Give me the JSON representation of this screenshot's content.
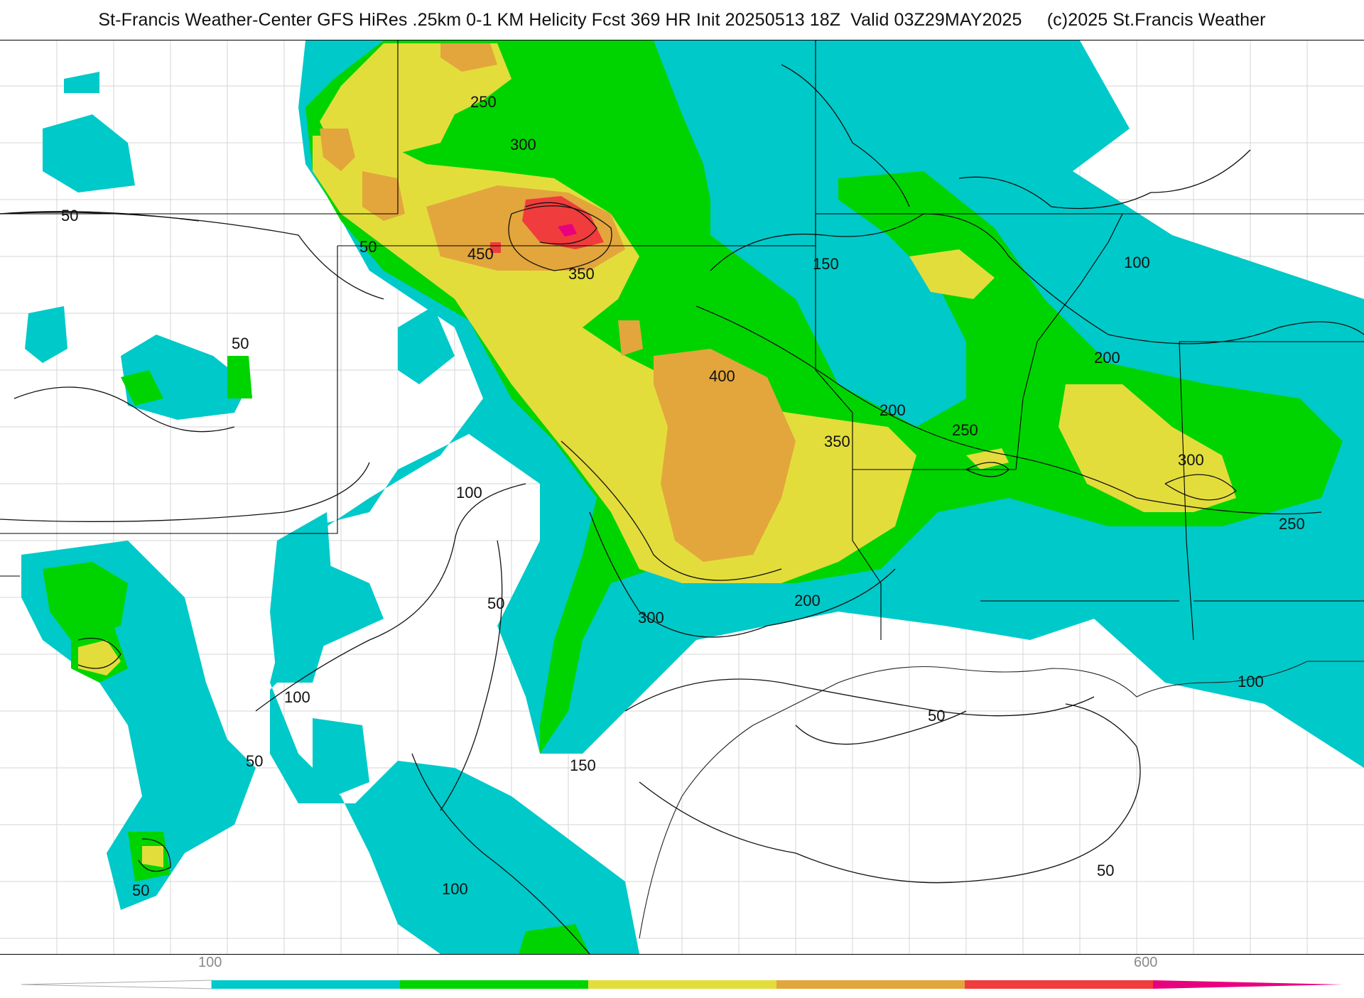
{
  "header": {
    "title": "St-Francis Weather-Center GFS HiRes .25km 0-1 KM Helicity Fcst 369 HR Init 20250513 18Z  Valid 03Z29MAY2025     (c)2025 St.Francis Weather"
  },
  "map": {
    "contour_labels": [
      "250",
      "300",
      "450",
      "350",
      "150",
      "100",
      "50",
      "50",
      "50",
      "400",
      "200",
      "250",
      "350",
      "200",
      "300",
      "250",
      "100",
      "50",
      "300",
      "200",
      "100",
      "50",
      "150",
      "50",
      "100",
      "50",
      "100",
      "50"
    ]
  },
  "colorbar": {
    "tick_labels": [
      "100",
      "600"
    ],
    "colors": [
      "#00c9c9",
      "#00d400",
      "#e3dd3c",
      "#e3a63c",
      "#f03c3c",
      "#e8007e"
    ]
  }
}
